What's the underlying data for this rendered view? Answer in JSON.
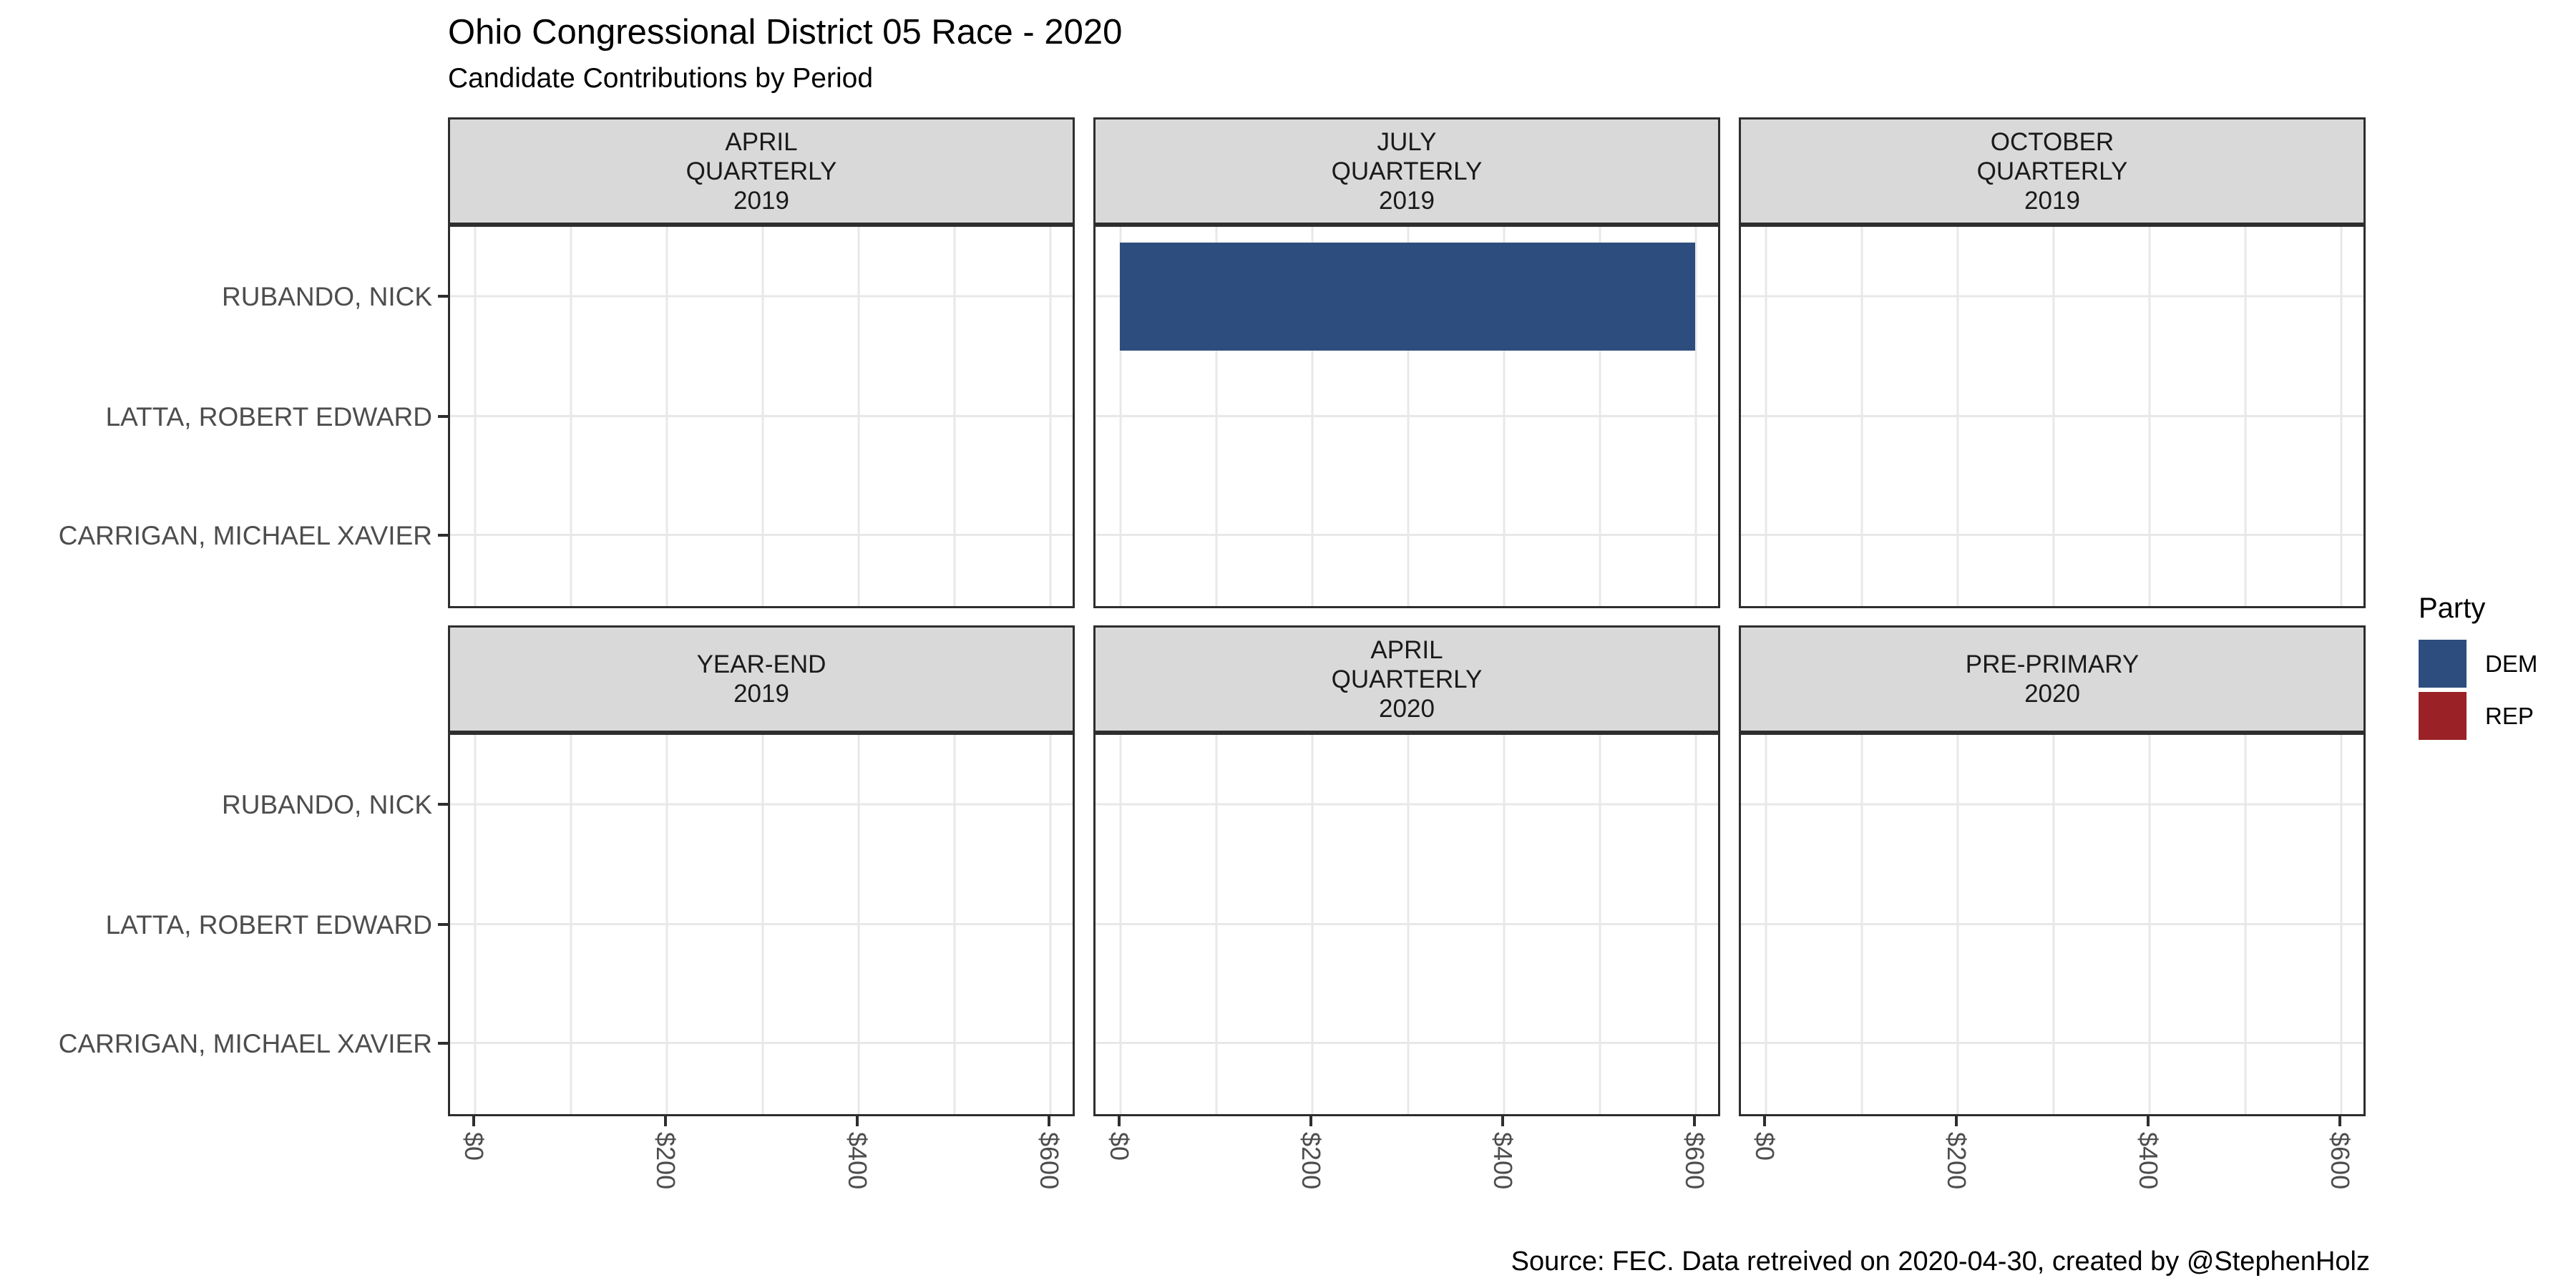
{
  "title": "Ohio Congressional District 05 Race - 2020",
  "subtitle": "Candidate Contributions by Period",
  "caption": "Source: FEC. Data retreived on 2020-04-30, created by @StephenHolz",
  "legend": {
    "title": "Party",
    "position": "right",
    "items": [
      {
        "label": "DEM",
        "color": "#2d4d7e"
      },
      {
        "label": "REP",
        "color": "#9a2226"
      }
    ]
  },
  "style": {
    "facet_strip_bg": "#d9d9d9",
    "panel_border": "#2e2e2e",
    "grid_color": "#e8e8e8",
    "axis_text_color": "#4d4d4d"
  },
  "chart_data": {
    "type": "bar",
    "orientation": "horizontal",
    "title": "Ohio Congressional District 05 Race - 2020",
    "subtitle": "Candidate Contributions by Period",
    "categories": [
      "RUBANDO, NICK",
      "LATTA, ROBERT EDWARD",
      "CARRIGAN, MICHAEL XAVIER"
    ],
    "x_tick_labels": [
      "$0",
      "$200",
      "$400",
      "$600"
    ],
    "x_range": [
      0,
      600
    ],
    "x_unit": "USD",
    "grid": true,
    "legend_position": "right",
    "facets": [
      {
        "label": "APRIL\nQUARTERLY\n2019",
        "bars": []
      },
      {
        "label": "JULY\nQUARTERLY\n2019",
        "bars": [
          {
            "candidate": "RUBANDO, NICK",
            "party": "DEM",
            "value": 600
          }
        ]
      },
      {
        "label": "OCTOBER\nQUARTERLY\n2019",
        "bars": []
      },
      {
        "label": "YEAR-END\n2019",
        "bars": []
      },
      {
        "label": "APRIL\nQUARTERLY\n2020",
        "bars": []
      },
      {
        "label": "PRE-PRIMARY\n2020",
        "bars": []
      }
    ]
  }
}
